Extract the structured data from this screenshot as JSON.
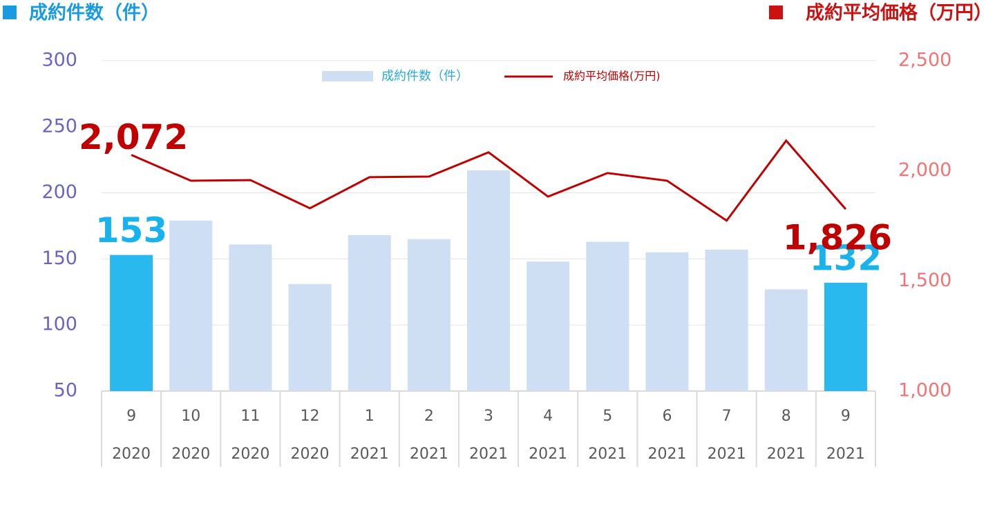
{
  "chart_data": {
    "type": "bar_line",
    "axis_titles": {
      "y": "成約件数（件）",
      "y2": "成約平均価格（万円）"
    },
    "categories": [
      [
        "9",
        "2020"
      ],
      [
        "10",
        "2020"
      ],
      [
        "11",
        "2020"
      ],
      [
        "12",
        "2020"
      ],
      [
        "1",
        "2021"
      ],
      [
        "2",
        "2021"
      ],
      [
        "3",
        "2021"
      ],
      [
        "4",
        "2021"
      ],
      [
        "5",
        "2021"
      ],
      [
        "6",
        "2021"
      ],
      [
        "7",
        "2021"
      ],
      [
        "8",
        "2021"
      ],
      [
        "9",
        "2021"
      ]
    ],
    "series": [
      {
        "name": "成約件数（件）",
        "type": "bar",
        "color": "#cfdff3",
        "colors": [
          "#29b9ee",
          "#cfdff3",
          "#cfdff3",
          "#cfdff3",
          "#cfdff3",
          "#cfdff3",
          "#cfdff3",
          "#cfdff3",
          "#cfdff3",
          "#cfdff3",
          "#cfdff3",
          "#cfdff3",
          "#29b9ee"
        ],
        "values": [
          153,
          179,
          161,
          131,
          168,
          165,
          217,
          148,
          163,
          155,
          157,
          127,
          132
        ],
        "labeled": [
          true,
          false,
          false,
          false,
          false,
          false,
          false,
          false,
          false,
          false,
          false,
          false,
          true
        ]
      },
      {
        "name": "成約平均価格(万円)",
        "type": "line",
        "axis": "y2",
        "color": "#c00000",
        "values": [
          2072,
          1955,
          1958,
          1830,
          1971,
          1974,
          2084,
          1883,
          1990,
          1955,
          1774,
          2137,
          1826
        ],
        "value_labels": [
          "2,072",
          null,
          null,
          null,
          null,
          null,
          null,
          null,
          null,
          null,
          null,
          null,
          "1,826"
        ]
      }
    ],
    "ylim": [
      50,
      300
    ],
    "yticks": [
      50,
      100,
      150,
      200,
      250,
      300
    ],
    "y2lim": [
      1000,
      2500
    ],
    "y2ticks": [
      {
        "value": 1000,
        "label": "1,000"
      },
      {
        "value": 1500,
        "label": "1,500"
      },
      {
        "value": 2000,
        "label": "2,000"
      },
      {
        "value": 2500,
        "label": "2,500"
      }
    ],
    "grid": true
  }
}
